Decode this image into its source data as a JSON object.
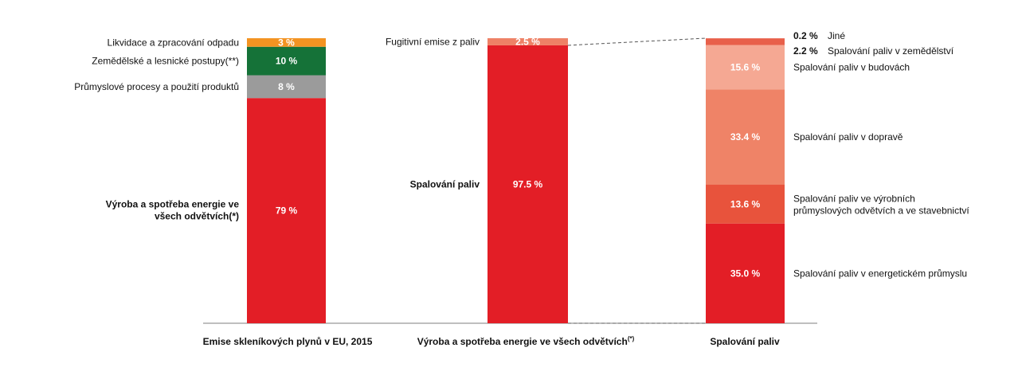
{
  "colors": {
    "waste": "#f39322",
    "agriculture": "#157238",
    "industrial": "#9b9b9b",
    "energy": "#e31e26",
    "fugitive": "#ee8166",
    "other": "#e8604a",
    "buildings": "#f5a893",
    "transport": "#ef8367",
    "manufacturing": "#e8533c",
    "power": "#e31e26",
    "text": "#111111",
    "axis": "#7f7f7f"
  },
  "chart_data": [
    {
      "type": "bar",
      "title": "Emise skleníkových plynů v EU, 2015",
      "stacked": true,
      "ylim": [
        0,
        100
      ],
      "series": [
        {
          "key": "energy",
          "name": "Výroba a spotřeba energie ve všech odvětvích(*)",
          "value": 79,
          "value_label": "79 %",
          "color_key": "energy"
        },
        {
          "key": "industrial",
          "name": "Průmyslové procesy a použití produktů",
          "value": 8,
          "value_label": "8 %",
          "color_key": "industrial"
        },
        {
          "key": "agriculture",
          "name": "Zemědělské a lesnické postupy(**)",
          "value": 10,
          "value_label": "10 %",
          "color_key": "agriculture"
        },
        {
          "key": "waste",
          "name": "Likvidace a zpracování odpadu",
          "value": 3,
          "value_label": "3 %",
          "color_key": "waste"
        }
      ]
    },
    {
      "type": "bar",
      "title": "Výroba a spotřeba energie ve všech odvětvích",
      "title_sup": "(*)",
      "stacked": true,
      "ylim": [
        0,
        100
      ],
      "series": [
        {
          "key": "combustion",
          "name": "Spalování paliv",
          "value": 97.5,
          "value_label": "97.5 %",
          "color_key": "energy"
        },
        {
          "key": "fugitive",
          "name": "Fugitivní emise z paliv",
          "value": 2.5,
          "value_label": "2.5 %",
          "color_key": "fugitive"
        }
      ]
    },
    {
      "type": "bar",
      "title": "Spalování paliv",
      "stacked": true,
      "ylim": [
        0,
        100
      ],
      "series": [
        {
          "key": "power",
          "name": "Spalování paliv v energetickém průmyslu",
          "value": 35.0,
          "value_label": "35.0 %",
          "color_key": "power"
        },
        {
          "key": "manufacturing",
          "name": "Spalování paliv ve výrobních průmyslových odvětvích a ve stavebnictví",
          "name_lines": [
            "Spalování paliv ve výrobních",
            "průmyslových odvětvích a ve stavebnictví"
          ],
          "value": 13.6,
          "value_label": "13.6 %",
          "color_key": "manufacturing"
        },
        {
          "key": "transport",
          "name": "Spalování paliv v dopravě",
          "value": 33.4,
          "value_label": "33.4 %",
          "color_key": "transport"
        },
        {
          "key": "buildings",
          "name": "Spalování paliv v budovách",
          "value": 15.6,
          "value_label": "15.6 %",
          "color_key": "buildings"
        },
        {
          "key": "agri",
          "name": "Spalování paliv v zemědělství",
          "value": 2.2,
          "value_label": "2.2 %",
          "color_key": "other"
        },
        {
          "key": "other",
          "name": "Jiné",
          "value": 0.2,
          "value_label": "0.2 %",
          "color_key": "other"
        }
      ]
    }
  ]
}
